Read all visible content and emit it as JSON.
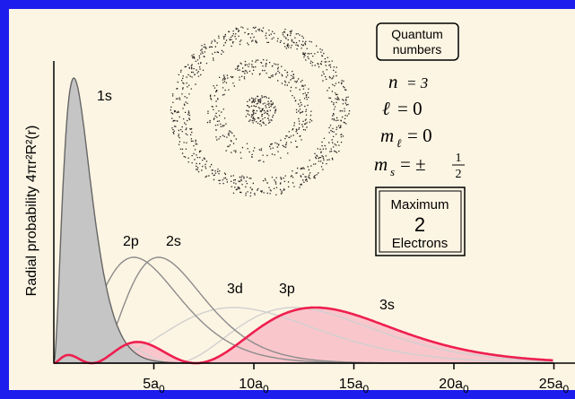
{
  "chart_data": {
    "type": "area",
    "ylabel": "Radial probability 4πr²R²(r)",
    "x_unit": "a₀",
    "x_ticks": [
      {
        "value": 5,
        "label": "5a0"
      },
      {
        "value": 10,
        "label": "10a0"
      },
      {
        "value": 15,
        "label": "15a0"
      },
      {
        "value": 20,
        "label": "20a0"
      },
      {
        "value": 25,
        "label": "25a0"
      }
    ],
    "xlim": [
      0,
      25
    ],
    "ylim": [
      0,
      1
    ],
    "grid": false,
    "series": [
      {
        "name": "1s",
        "n": 1,
        "l": 0,
        "peak_x": 1.0,
        "style": "filled-gray"
      },
      {
        "name": "2p",
        "n": 2,
        "l": 1,
        "peak_x": 4.0,
        "style": "gray-line"
      },
      {
        "name": "2s",
        "n": 2,
        "l": 0,
        "peak_x": 5.2,
        "style": "gray-line"
      },
      {
        "name": "3d",
        "n": 3,
        "l": 2,
        "peak_x": 9.0,
        "style": "light-line"
      },
      {
        "name": "3p",
        "n": 3,
        "l": 1,
        "peak_x": 12.0,
        "style": "light-line"
      },
      {
        "name": "3s",
        "n": 3,
        "l": 0,
        "peak_x": 13.1,
        "style": "filled-red"
      }
    ]
  },
  "quantum_box": {
    "line1": "Quantum",
    "line2": "numbers"
  },
  "quantum_numbers": {
    "n": {
      "symbol": "n",
      "value": "= 3"
    },
    "l": {
      "symbol": "ℓ",
      "value": "= 0"
    },
    "ml": {
      "symbol": "m",
      "sub": "ℓ",
      "value": "= 0"
    },
    "ms": {
      "symbol": "m",
      "sub": "s",
      "value": "= ±",
      "num": "1",
      "den": "2"
    }
  },
  "max_box": {
    "line1": "Maximum",
    "number": "2",
    "line2": "Electrons"
  },
  "colors": {
    "border": "#1d1dee",
    "background": "#fdf5e3",
    "red": "#ee1f4f",
    "red_fill": "#f9c6cc",
    "gray_fill": "#c5c5c5",
    "gray_line": "#8c8c8c",
    "light_line": "#d0d0d0"
  },
  "icons": {
    "orbital": "3s-orbital-dot-density-icon"
  }
}
